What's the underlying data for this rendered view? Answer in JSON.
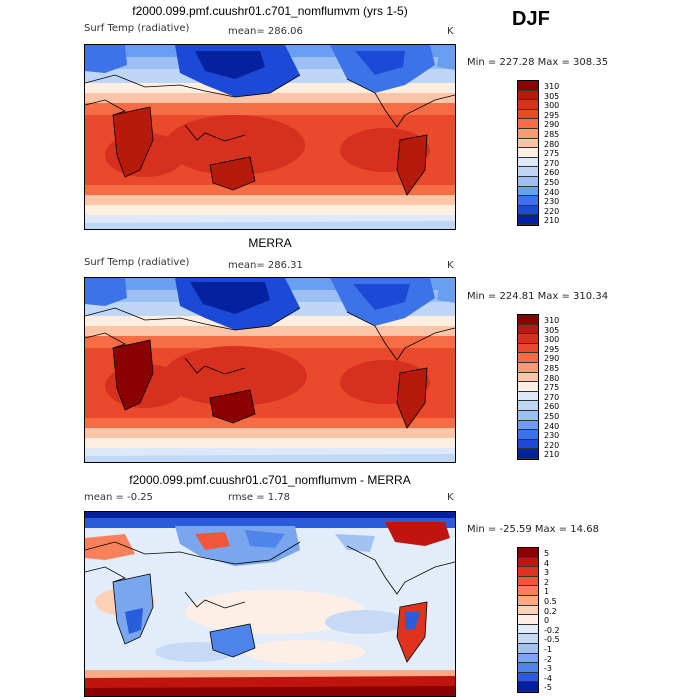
{
  "season": "DJF",
  "panels": [
    {
      "title": "f2000.099.pmf.cuushr01.c701_nomflumvm (yrs 1-5)",
      "left_label": "Surf Temp (radiative)",
      "mean_text": "mean= 286.06",
      "units": "K",
      "minmax": "Min = 227.28 Max = 308.35",
      "levels": [
        "310",
        "305",
        "300",
        "295",
        "290",
        "285",
        "280",
        "275",
        "270",
        "260",
        "250",
        "240",
        "230",
        "220",
        "210"
      ],
      "colors": [
        "#8b0000",
        "#b51a0d",
        "#d7301f",
        "#ea4a2c",
        "#f56c45",
        "#fb9a73",
        "#fcc5a8",
        "#fdeee2",
        "#dde9f8",
        "#bfd6f7",
        "#9cc0f4",
        "#6a9ef0",
        "#3d73e8",
        "#1c49d6",
        "#05229e"
      ]
    },
    {
      "title": "MERRA",
      "left_label": "Surf Temp (radiative)",
      "mean_text": "mean= 286.31",
      "units": "K",
      "minmax": "Min = 224.81 Max = 310.34",
      "levels": [
        "310",
        "305",
        "300",
        "295",
        "290",
        "285",
        "280",
        "275",
        "270",
        "260",
        "250",
        "240",
        "230",
        "220",
        "210"
      ],
      "colors": [
        "#8b0000",
        "#b51a0d",
        "#d7301f",
        "#ea4a2c",
        "#f56c45",
        "#fb9a73",
        "#fcc5a8",
        "#fdeee2",
        "#dde9f8",
        "#bfd6f7",
        "#9cc0f4",
        "#6a9ef0",
        "#3d73e8",
        "#1c49d6",
        "#05229e"
      ]
    },
    {
      "title": "f2000.099.pmf.cuushr01.c701_nomflumvm - MERRA",
      "mean_text": "mean =   -0.25",
      "rmse_text": "rmse =    1.78",
      "units": "K",
      "minmax": "Min = -25.59 Max =   14.68",
      "levels": [
        "5",
        "4",
        "3",
        "2",
        "1",
        "0.5",
        "0.2",
        "0",
        "-0.2",
        "-0.5",
        "-1",
        "-2",
        "-3",
        "-4",
        "-5"
      ],
      "colors": [
        "#8b0000",
        "#c0140f",
        "#e0331f",
        "#f2563a",
        "#f8805b",
        "#fbaa88",
        "#fdd0b8",
        "#fdefe5",
        "#e3ecf9",
        "#c6daf6",
        "#a2c2f3",
        "#7aa6ef",
        "#4f84ea",
        "#2a5cdc",
        "#061f9a"
      ]
    }
  ]
}
